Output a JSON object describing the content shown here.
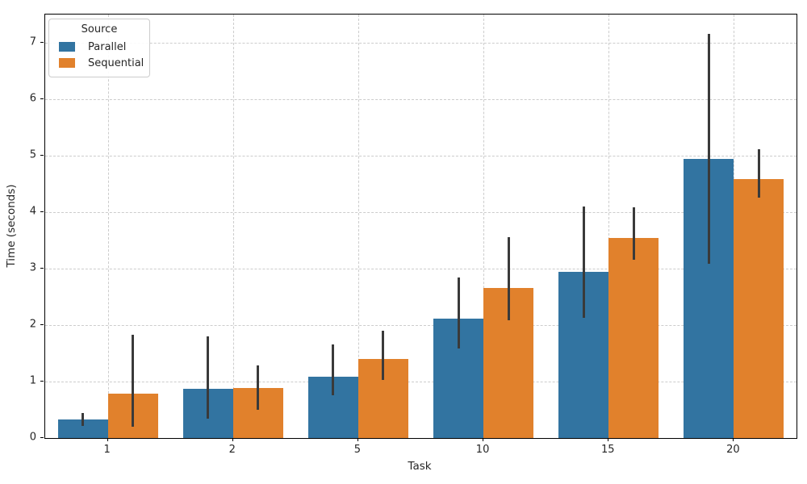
{
  "chart_data": {
    "type": "bar",
    "title": "",
    "xlabel": "Task",
    "ylabel": "Time (seconds)",
    "categories": [
      "1",
      "2",
      "5",
      "10",
      "15",
      "20"
    ],
    "series": [
      {
        "name": "Parallel",
        "color": "#3274a1",
        "values": [
          0.33,
          0.87,
          1.08,
          2.12,
          2.95,
          4.94
        ],
        "ci_low": [
          0.22,
          0.35,
          0.76,
          1.59,
          2.13,
          3.09
        ],
        "ci_high": [
          0.45,
          1.8,
          1.66,
          2.84,
          4.1,
          7.16
        ]
      },
      {
        "name": "Sequential",
        "color": "#e1812c",
        "values": [
          0.78,
          0.88,
          1.4,
          2.66,
          3.55,
          4.59
        ],
        "ci_low": [
          0.2,
          0.5,
          1.03,
          2.08,
          3.16,
          4.25
        ],
        "ci_high": [
          1.83,
          1.29,
          1.9,
          3.56,
          4.09,
          5.11
        ]
      }
    ],
    "ylim": [
      0,
      7.5
    ],
    "yticks": [
      0,
      1,
      2,
      3,
      4,
      5,
      6,
      7
    ],
    "grid": true,
    "legend": {
      "title": "Source",
      "position": "upper-left"
    },
    "error_bar_color": "#3a3a3a",
    "grid_color": "#cccccc"
  }
}
